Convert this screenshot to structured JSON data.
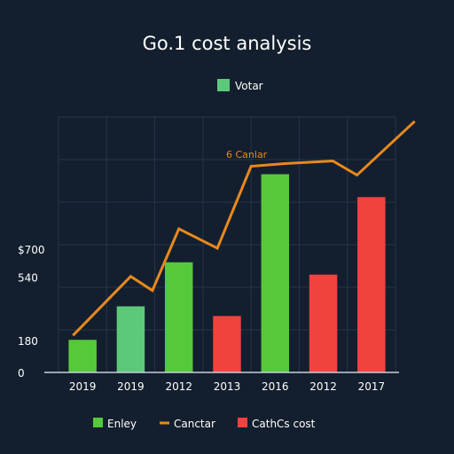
{
  "chart_data": {
    "type": "bar",
    "title": "Go.1 cost analysis",
    "top_legend": {
      "label": "Votar",
      "color": "#5cc97a"
    },
    "line_annotation": {
      "text": "6 Canlar",
      "color": "#e8891c"
    },
    "categories": [
      "2019",
      "2019",
      "2012",
      "2013",
      "2016",
      "2012",
      "2017"
    ],
    "y_ticks": [
      {
        "label": "0",
        "value": 0
      },
      {
        "label": "180",
        "value": 180
      },
      {
        "label": "540",
        "value": 540
      },
      {
        "label": "$700",
        "value": 700
      }
    ],
    "ylim": [
      0,
      1550
    ],
    "bars": [
      {
        "value": 185,
        "color": "#55c93a"
      },
      {
        "value": 375,
        "color": "#5cc97a"
      },
      {
        "value": 625,
        "color": "#55c93a"
      },
      {
        "value": 320,
        "color": "#f0433f"
      },
      {
        "value": 1125,
        "color": "#55c93a"
      },
      {
        "value": 555,
        "color": "#f0433f"
      },
      {
        "value": 995,
        "color": "#f0433f"
      }
    ],
    "line": {
      "color": "#e8891c",
      "x": [
        -0.2,
        1,
        1.45,
        2,
        2.8,
        3.5,
        4.2,
        5.2,
        5.7,
        6.9
      ],
      "y": [
        210,
        545,
        465,
        815,
        705,
        1170,
        1185,
        1200,
        1120,
        1425
      ]
    },
    "legend": [
      {
        "label": "Enley",
        "color": "#55c93a",
        "kind": "box"
      },
      {
        "label": "Canctar",
        "color": "#e8891c",
        "kind": "line"
      },
      {
        "label": "CathCs cost",
        "color": "#f0433f",
        "kind": "box"
      }
    ]
  }
}
